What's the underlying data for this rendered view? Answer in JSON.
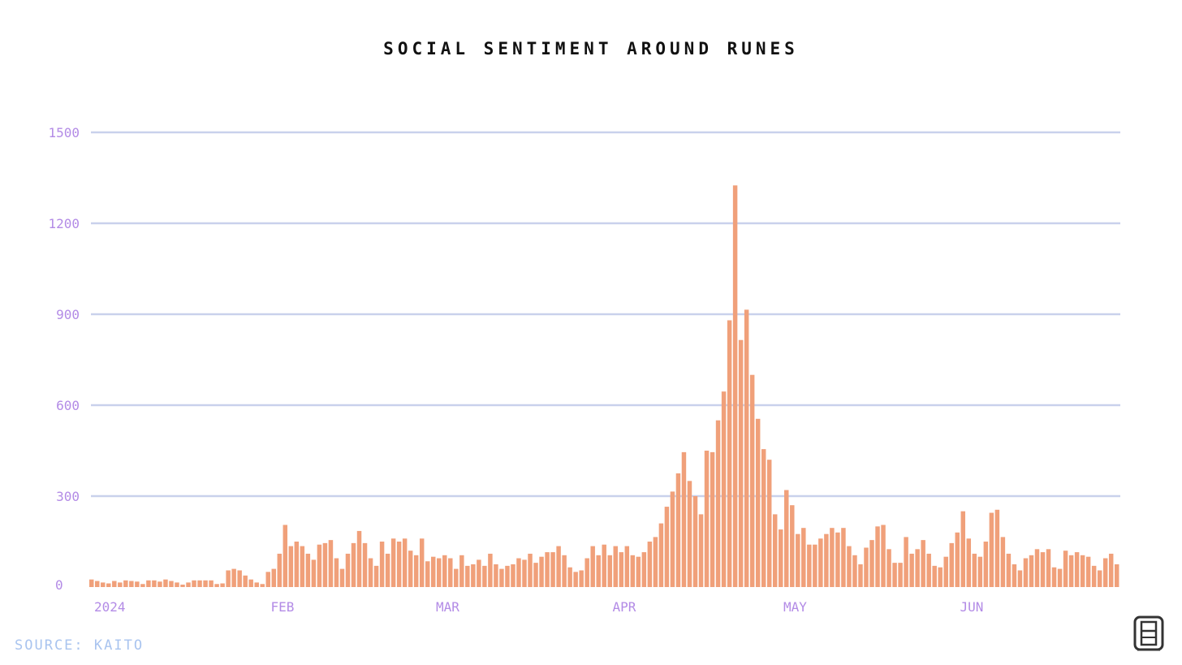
{
  "chart_data": {
    "type": "bar",
    "title": "SOCIAL SENTIMENT AROUND RUNES",
    "xlabel": "",
    "ylabel": "",
    "ylim": [
      0,
      1500
    ],
    "yticks": [
      0,
      300,
      600,
      900,
      1200,
      1500
    ],
    "yticks_text": [
      "0",
      "300",
      "600",
      "900",
      "1200",
      "1500"
    ],
    "grid": true,
    "xtick_labels": [
      {
        "label": "2024",
        "x": "2024-01-01"
      },
      {
        "label": "FEB",
        "x": "2024-02-01"
      },
      {
        "label": "MAR",
        "x": "2024-03-01"
      },
      {
        "label": "APR",
        "x": "2024-04-01"
      },
      {
        "label": "MAY",
        "x": "2024-05-01"
      },
      {
        "label": "JUN",
        "x": "2024-06-01"
      }
    ],
    "bar_color": "#f0a07a",
    "x_start": "2024-01-01",
    "x_end": "2024-06-29",
    "values": [
      25,
      20,
      15,
      12,
      20,
      15,
      22,
      20,
      18,
      10,
      22,
      22,
      18,
      25,
      20,
      15,
      8,
      15,
      22,
      22,
      22,
      22,
      10,
      12,
      55,
      60,
      55,
      38,
      25,
      15,
      10,
      50,
      60,
      110,
      205,
      135,
      150,
      135,
      110,
      90,
      140,
      145,
      155,
      95,
      60,
      110,
      145,
      185,
      145,
      95,
      70,
      150,
      110,
      160,
      150,
      160,
      120,
      105,
      160,
      85,
      100,
      95,
      105,
      95,
      60,
      105,
      70,
      75,
      90,
      70,
      110,
      75,
      60,
      70,
      75,
      95,
      90,
      110,
      80,
      100,
      115,
      115,
      135,
      105,
      65,
      50,
      55,
      95,
      135,
      105,
      140,
      105,
      135,
      115,
      135,
      105,
      100,
      115,
      150,
      165,
      210,
      265,
      315,
      375,
      445,
      350,
      300,
      240,
      450,
      445,
      550,
      645,
      880,
      1325,
      815,
      915,
      700,
      555,
      455,
      420,
      240,
      190,
      320,
      270,
      175,
      195,
      140,
      140,
      160,
      175,
      195,
      180,
      195,
      135,
      105,
      75,
      130,
      155,
      200,
      205,
      125,
      80,
      80,
      165,
      110,
      125,
      155,
      110,
      70,
      65,
      100,
      145,
      180,
      250,
      160,
      110,
      100,
      150,
      245,
      255,
      165,
      110,
      75,
      55,
      95,
      105,
      125,
      115,
      125,
      65,
      60,
      120,
      105,
      115,
      105,
      100,
      70,
      55,
      95,
      110,
      75
    ]
  },
  "source": "SOURCE: KAITO"
}
